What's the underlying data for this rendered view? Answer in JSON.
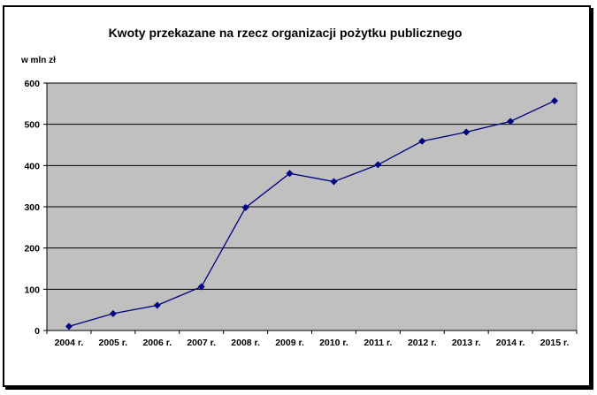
{
  "chart_data": {
    "type": "line",
    "title": "Kwoty  przekazane na rzecz organizacji pożytku publicznego",
    "ylabel": "w mln zł",
    "xlabel": "",
    "categories": [
      "2004 r.",
      "2005 r.",
      "2006 r.",
      "2007 r.",
      "2008 r.",
      "2009 r.",
      "2010 r.",
      "2011 r.",
      "2012 r.",
      "2013 r.",
      "2014 r.",
      "2015 r."
    ],
    "series": [
      {
        "values": [
          10,
          41,
          61,
          106,
          298,
          381,
          361,
          402,
          459,
          481,
          507,
          557
        ]
      }
    ],
    "ylim": [
      0,
      600
    ],
    "yticks": [
      "0",
      "100",
      "200",
      "300",
      "400",
      "500",
      "600"
    ],
    "grid": true,
    "legend": "none",
    "colors": {
      "plot_bg": "#c0c0c0",
      "line": "#000080",
      "marker": "#000080",
      "grid": "#000000"
    }
  }
}
